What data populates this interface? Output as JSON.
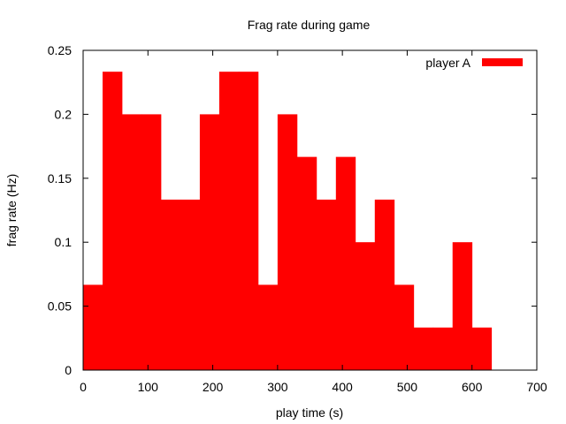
{
  "chart_data": {
    "type": "bar",
    "title": "Frag rate during game",
    "xlabel": "play time (s)",
    "ylabel": "frag rate (Hz)",
    "xlim": [
      0,
      700
    ],
    "ylim": [
      0,
      0.25
    ],
    "xticks": [
      "0",
      "100",
      "200",
      "300",
      "400",
      "500",
      "600",
      "700"
    ],
    "yticks": [
      "0",
      "0.05",
      "0.1",
      "0.15",
      "0.2",
      "0.25"
    ],
    "grid": false,
    "legend_position": "top-right",
    "bin_width": 30,
    "series": [
      {
        "name": "player A",
        "color": "#ff0000",
        "bins": [
          {
            "x": 15,
            "value": 0.0667
          },
          {
            "x": 45,
            "value": 0.2333
          },
          {
            "x": 75,
            "value": 0.2
          },
          {
            "x": 105,
            "value": 0.2
          },
          {
            "x": 135,
            "value": 0.1333
          },
          {
            "x": 165,
            "value": 0.1333
          },
          {
            "x": 195,
            "value": 0.2
          },
          {
            "x": 225,
            "value": 0.2333
          },
          {
            "x": 255,
            "value": 0.2333
          },
          {
            "x": 285,
            "value": 0.0667
          },
          {
            "x": 315,
            "value": 0.2
          },
          {
            "x": 345,
            "value": 0.1667
          },
          {
            "x": 375,
            "value": 0.1333
          },
          {
            "x": 405,
            "value": 0.1667
          },
          {
            "x": 435,
            "value": 0.1
          },
          {
            "x": 465,
            "value": 0.1333
          },
          {
            "x": 495,
            "value": 0.0667
          },
          {
            "x": 525,
            "value": 0.0333
          },
          {
            "x": 555,
            "value": 0.0333
          },
          {
            "x": 585,
            "value": 0.1
          },
          {
            "x": 615,
            "value": 0.0333
          }
        ]
      }
    ]
  }
}
